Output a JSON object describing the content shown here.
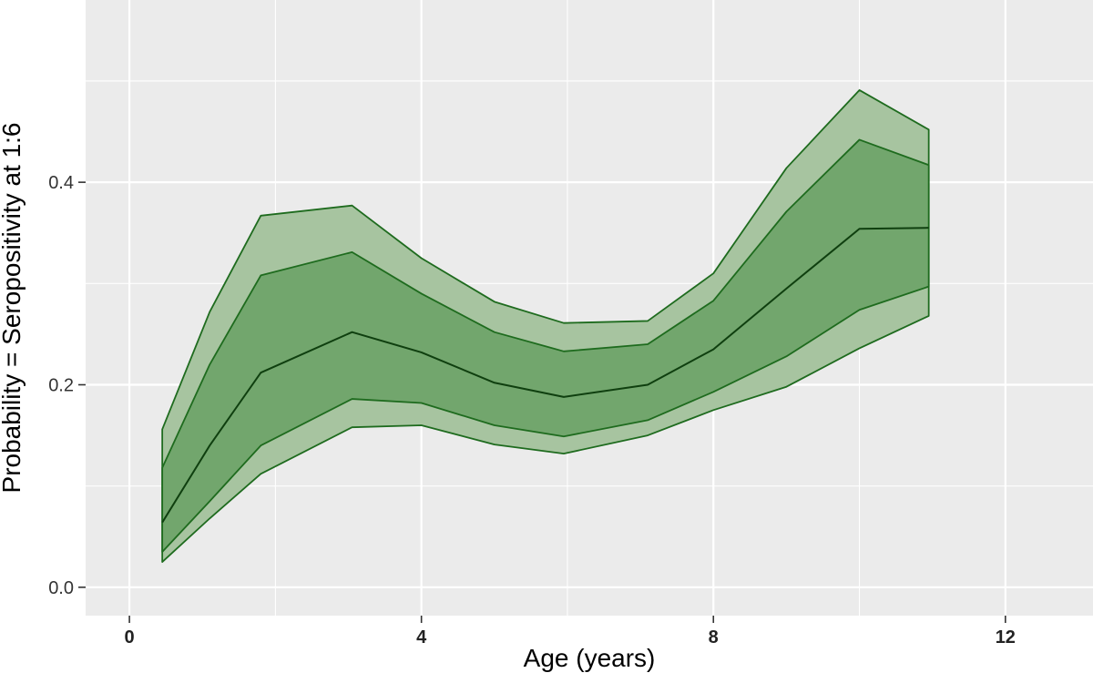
{
  "chart_data": {
    "type": "area",
    "xlabel": "Age (years)",
    "ylabel": "Probability = Seropositivity at 1:6",
    "xlim": [
      -0.6,
      13.2
    ],
    "ylim": [
      -0.028,
      0.58
    ],
    "x_ticks": [
      0,
      4,
      8,
      12
    ],
    "x_tick_labels": [
      "0",
      "4",
      "8",
      "12"
    ],
    "y_ticks": [
      0.0,
      0.2,
      0.4
    ],
    "y_tick_labels": [
      "0.0",
      "0.2",
      "0.4"
    ],
    "grid": true,
    "x": [
      0.45,
      1.1,
      1.8,
      3.05,
      4.0,
      5.0,
      5.95,
      7.1,
      8.0,
      9.0,
      10.0,
      10.95
    ],
    "series": [
      {
        "role": "median",
        "values": [
          0.064,
          0.14,
          0.212,
          0.252,
          0.232,
          0.202,
          0.188,
          0.2,
          0.235,
          0.295,
          0.354,
          0.355
        ]
      },
      {
        "role": "inner_lower",
        "values": [
          0.035,
          0.085,
          0.14,
          0.186,
          0.182,
          0.16,
          0.149,
          0.165,
          0.193,
          0.228,
          0.274,
          0.297
        ]
      },
      {
        "role": "inner_upper",
        "values": [
          0.118,
          0.22,
          0.308,
          0.331,
          0.29,
          0.252,
          0.233,
          0.24,
          0.283,
          0.371,
          0.442,
          0.417
        ]
      },
      {
        "role": "outer_lower",
        "values": [
          0.025,
          0.068,
          0.112,
          0.158,
          0.16,
          0.141,
          0.132,
          0.15,
          0.175,
          0.198,
          0.236,
          0.268
        ]
      },
      {
        "role": "outer_upper",
        "values": [
          0.156,
          0.272,
          0.367,
          0.377,
          0.325,
          0.282,
          0.261,
          0.263,
          0.31,
          0.414,
          0.491,
          0.452
        ]
      }
    ],
    "colors": {
      "panel": "#ebebeb",
      "grid": "#ffffff",
      "outer_fill": "#a7c4a0",
      "inner_fill": "#72a66d",
      "band_line": "#1e6b1e",
      "median_line": "#0f3f0f",
      "tick_mark": "#333333"
    }
  }
}
